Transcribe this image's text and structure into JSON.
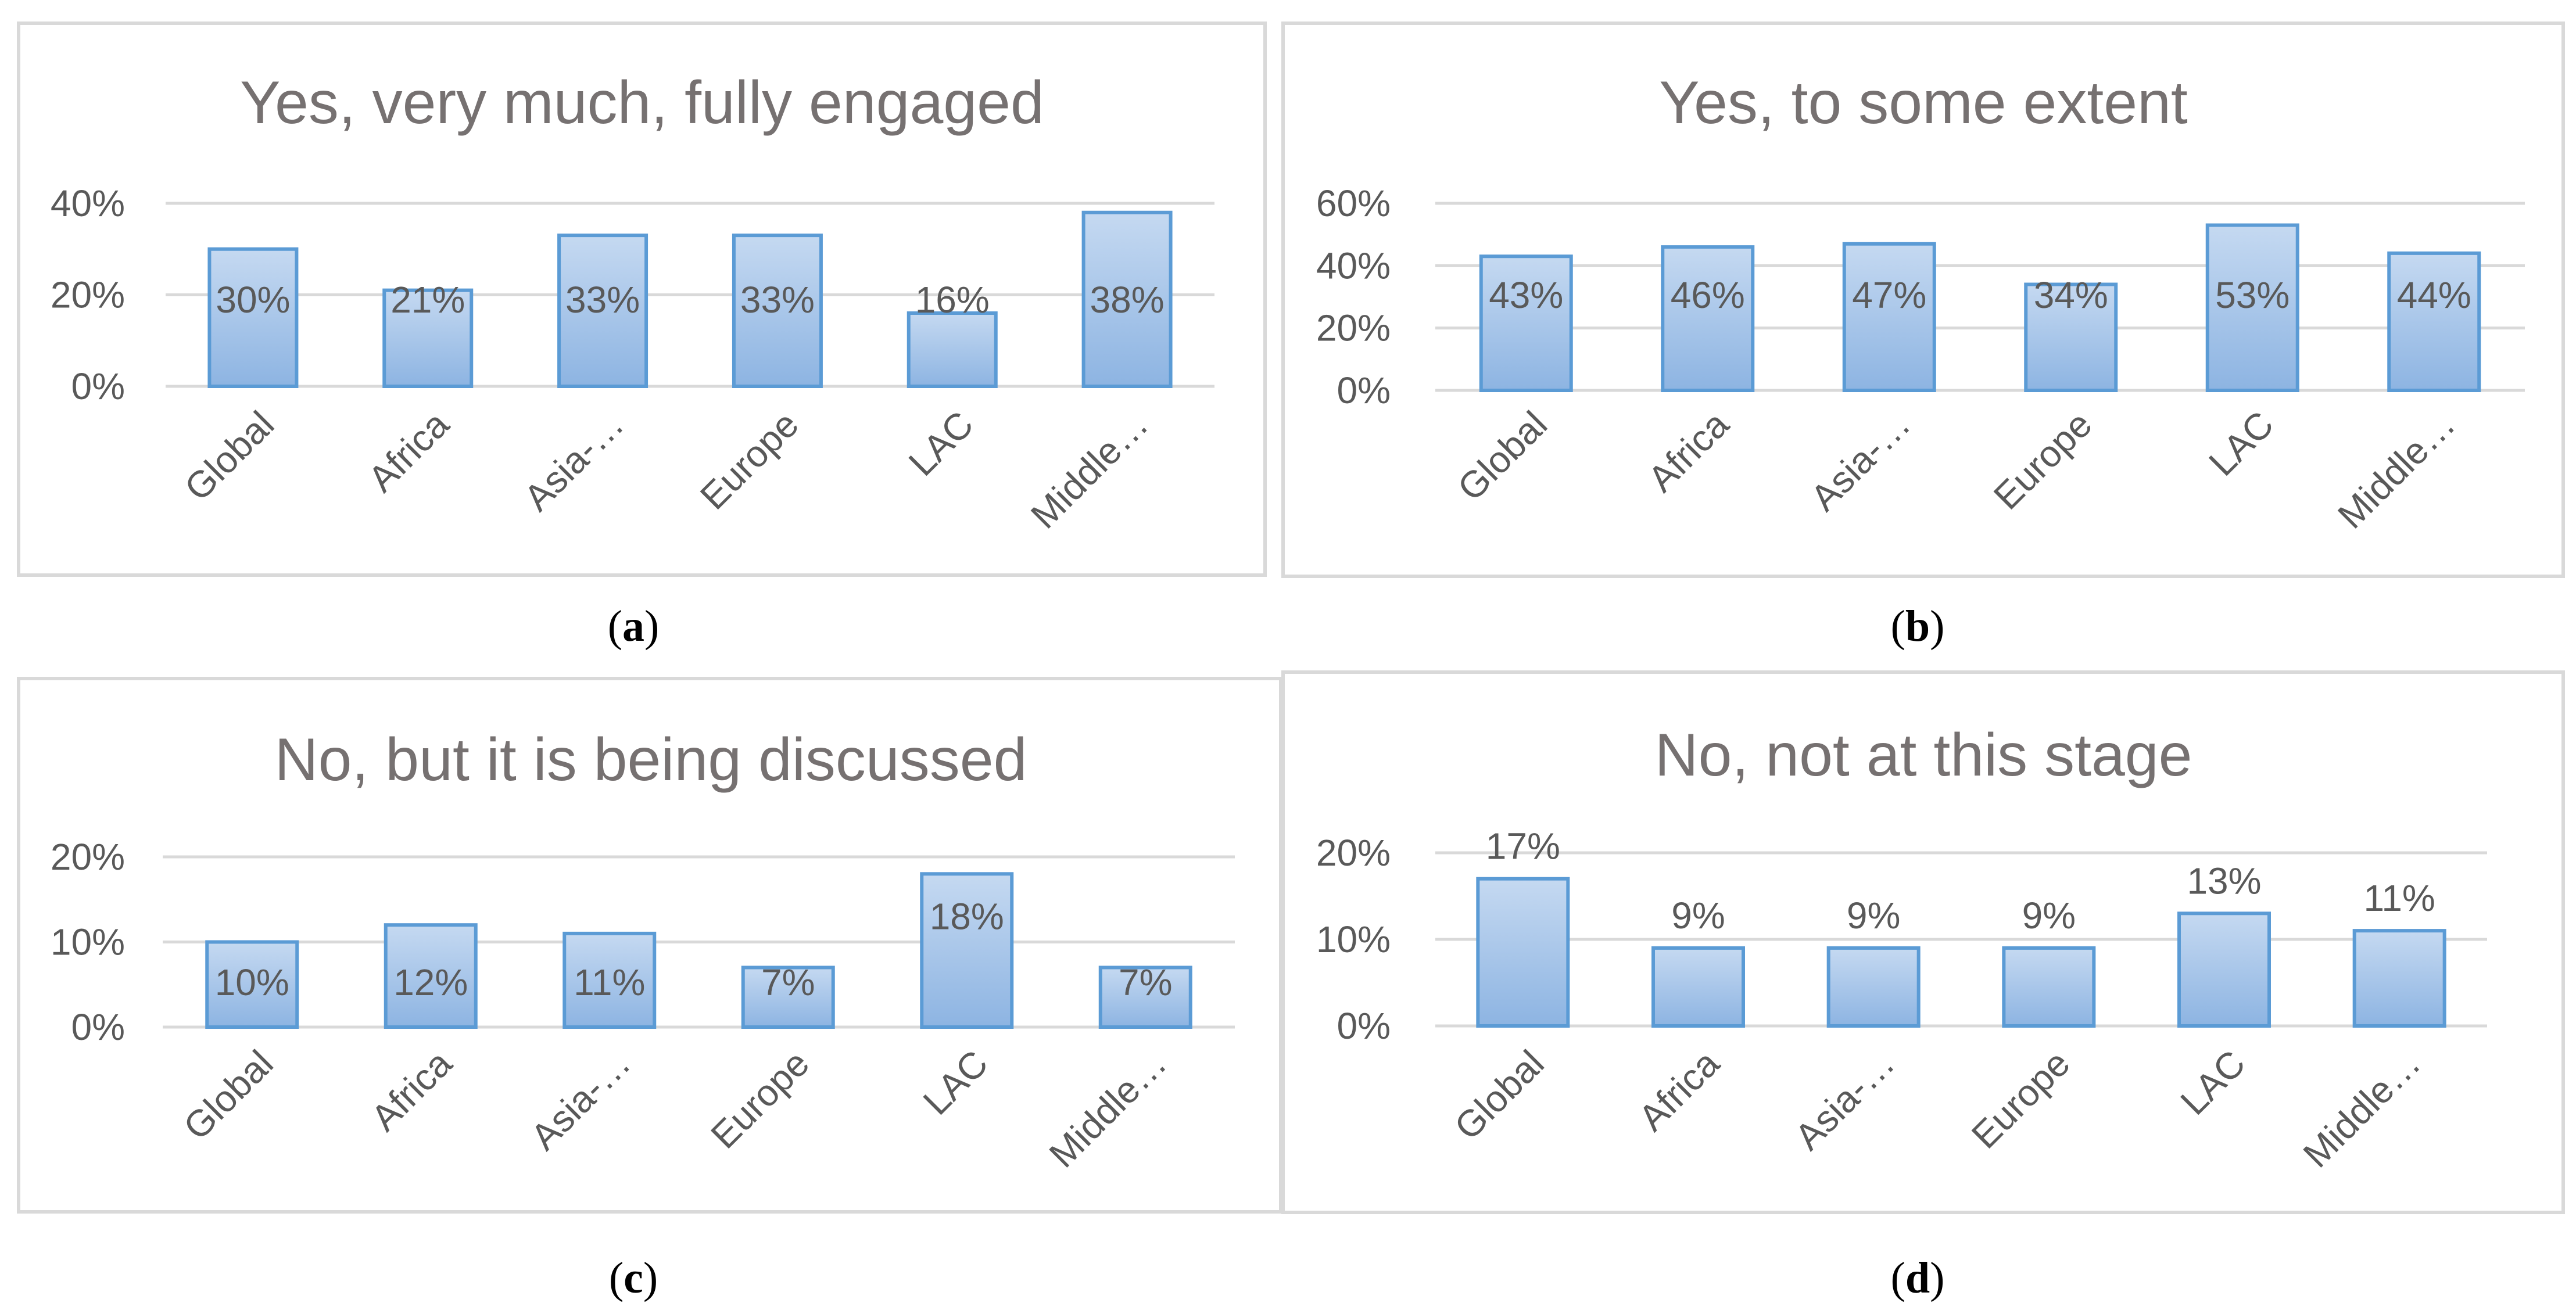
{
  "figure_colors": {
    "bar_fill_top": "#c5d9f1",
    "bar_fill_bottom": "#8db4e2",
    "bar_stroke": "#5b9bd5",
    "gridline": "#d9d9d9",
    "frame": "#d9d9d9",
    "title_text": "#767171",
    "label_text": "#595959"
  },
  "chart_data": [
    {
      "id": "a",
      "type": "bar",
      "title": "Yes, very much, fully engaged",
      "caption_letter": "a",
      "categories": [
        "Global",
        "Africa",
        "Asia-…",
        "Europe",
        "LAC",
        "Middle…"
      ],
      "values": [
        30,
        21,
        33,
        33,
        16,
        38
      ],
      "value_labels": [
        "30%",
        "21%",
        "33%",
        "33%",
        "16%",
        "38%"
      ],
      "label_position": "inside",
      "ylim": [
        0,
        40
      ],
      "yticks": [
        0,
        20,
        40
      ],
      "ytick_labels": [
        "0%",
        "20%",
        "40%"
      ],
      "xlabel": "",
      "ylabel": "",
      "grid": true
    },
    {
      "id": "b",
      "type": "bar",
      "title": "Yes, to some extent",
      "caption_letter": "b",
      "categories": [
        "Global",
        "Africa",
        "Asia-…",
        "Europe",
        "LAC",
        "Middle…"
      ],
      "values": [
        43,
        46,
        47,
        34,
        53,
        44
      ],
      "value_labels": [
        "43%",
        "46%",
        "47%",
        "34%",
        "53%",
        "44%"
      ],
      "label_position": "inside",
      "ylim": [
        0,
        60
      ],
      "yticks": [
        0,
        20,
        40,
        60
      ],
      "ytick_labels": [
        "0%",
        "20%",
        "40%",
        "60%"
      ],
      "xlabel": "",
      "ylabel": "",
      "grid": true
    },
    {
      "id": "c",
      "type": "bar",
      "title": "No, but it is being discussed",
      "caption_letter": "c",
      "categories": [
        "Global",
        "Africa",
        "Asia-…",
        "Europe",
        "LAC",
        "Middle…"
      ],
      "values": [
        10,
        12,
        11,
        7,
        18,
        7
      ],
      "value_labels": [
        "10%",
        "12%",
        "11%",
        "7%",
        "18%",
        "7%"
      ],
      "label_position": "inside",
      "ylim": [
        0,
        20
      ],
      "yticks": [
        0,
        10,
        20
      ],
      "ytick_labels": [
        "0%",
        "10%",
        "20%"
      ],
      "xlabel": "",
      "ylabel": "",
      "grid": true
    },
    {
      "id": "d",
      "type": "bar",
      "title": "No, not at this stage",
      "caption_letter": "d",
      "categories": [
        "Global",
        "Africa",
        "Asia-…",
        "Europe",
        "LAC",
        "Middle…"
      ],
      "values": [
        17,
        9,
        9,
        9,
        13,
        11
      ],
      "value_labels": [
        "17%",
        "9%",
        "9%",
        "9%",
        "13%",
        "11%"
      ],
      "label_position": "above",
      "ylim": [
        0,
        20
      ],
      "yticks": [
        0,
        10,
        20
      ],
      "ytick_labels": [
        "0%",
        "10%",
        "20%"
      ],
      "xlabel": "",
      "ylabel": "",
      "grid": true
    }
  ]
}
